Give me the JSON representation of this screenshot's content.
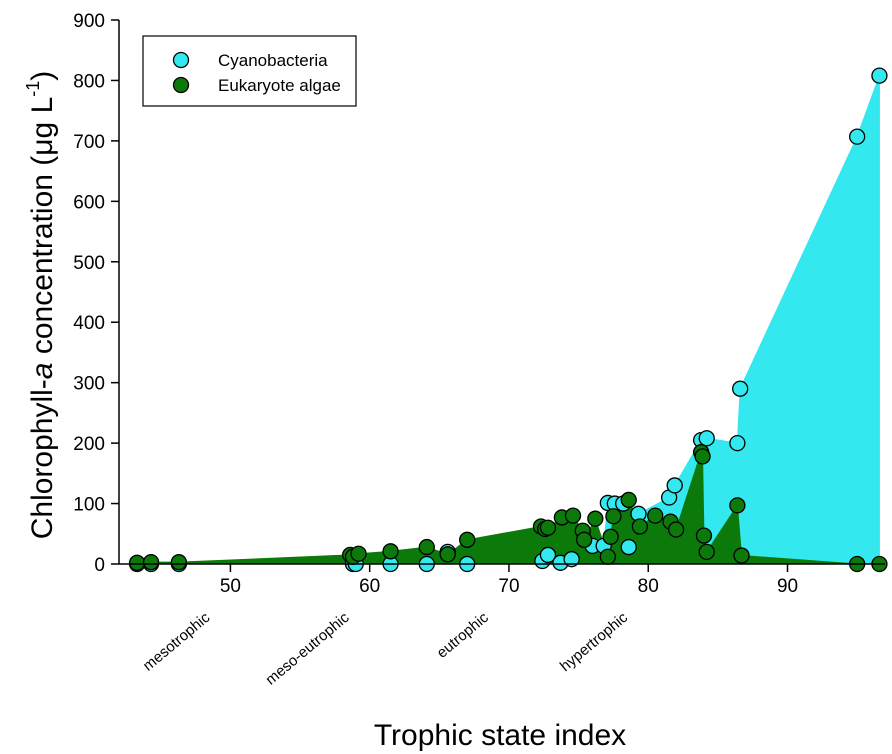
{
  "chart_data": {
    "type": "scatter",
    "xlabel": "Trophic state index",
    "ylabel": {
      "prefix": "Chlorophyll-",
      "italic": "a",
      "suffix": " concentration (μg L",
      "superscript": "-1",
      "close": ")"
    },
    "xlim": [
      42,
      97
    ],
    "ylim": [
      0,
      900
    ],
    "x_ticks": [
      50,
      60,
      70,
      80,
      90
    ],
    "y_ticks": [
      0,
      100,
      200,
      300,
      400,
      500,
      600,
      700,
      800,
      900
    ],
    "grid": false,
    "legend_position": "top-left",
    "category_labels": [
      {
        "label": "mesotrophic",
        "x": 46
      },
      {
        "label": "meso-eutrophic",
        "x": 56
      },
      {
        "label": "eutrophic",
        "x": 66
      },
      {
        "label": "hypertrophic",
        "x": 76
      }
    ],
    "series": [
      {
        "name": "Cyanobacteria",
        "color": "#33e8ee",
        "fill": "#33e8ee",
        "points": [
          [
            43.3,
            0
          ],
          [
            44.3,
            0
          ],
          [
            46.3,
            0
          ],
          [
            58.8,
            0
          ],
          [
            59.0,
            0
          ],
          [
            61.5,
            0
          ],
          [
            64.1,
            0
          ],
          [
            65.6,
            20
          ],
          [
            67.0,
            0
          ],
          [
            72.4,
            5
          ],
          [
            72.8,
            15
          ],
          [
            73.7,
            2
          ],
          [
            74.5,
            8
          ],
          [
            76.0,
            30
          ],
          [
            76.8,
            30
          ],
          [
            77.1,
            101
          ],
          [
            77.6,
            100
          ],
          [
            78.2,
            100
          ],
          [
            78.6,
            28
          ],
          [
            79.3,
            83
          ],
          [
            81.5,
            110
          ],
          [
            81.9,
            130
          ],
          [
            83.8,
            205
          ],
          [
            84.2,
            208
          ],
          [
            86.4,
            200
          ],
          [
            86.6,
            290
          ],
          [
            95.0,
            707
          ],
          [
            96.6,
            808
          ]
        ]
      },
      {
        "name": "Eukaryote algae",
        "color": "#0b7a0b",
        "fill": "#0b7a0b",
        "points": [
          [
            43.3,
            2
          ],
          [
            44.3,
            3
          ],
          [
            46.3,
            3
          ],
          [
            58.6,
            15
          ],
          [
            58.8,
            12
          ],
          [
            59.2,
            17
          ],
          [
            61.5,
            21
          ],
          [
            64.1,
            28
          ],
          [
            65.6,
            16
          ],
          [
            67.0,
            40
          ],
          [
            72.3,
            62
          ],
          [
            72.6,
            58
          ],
          [
            72.8,
            60
          ],
          [
            73.8,
            77
          ],
          [
            74.6,
            80
          ],
          [
            75.3,
            55
          ],
          [
            75.4,
            40
          ],
          [
            76.2,
            75
          ],
          [
            77.1,
            12
          ],
          [
            77.3,
            45
          ],
          [
            77.5,
            79
          ],
          [
            78.6,
            106
          ],
          [
            79.4,
            62
          ],
          [
            80.5,
            80
          ],
          [
            81.6,
            70
          ],
          [
            82.0,
            57
          ],
          [
            83.8,
            185
          ],
          [
            83.9,
            178
          ],
          [
            84.0,
            47
          ],
          [
            84.2,
            20
          ],
          [
            86.4,
            97
          ],
          [
            86.7,
            14
          ],
          [
            95.0,
            0
          ],
          [
            96.6,
            0
          ]
        ]
      }
    ]
  }
}
